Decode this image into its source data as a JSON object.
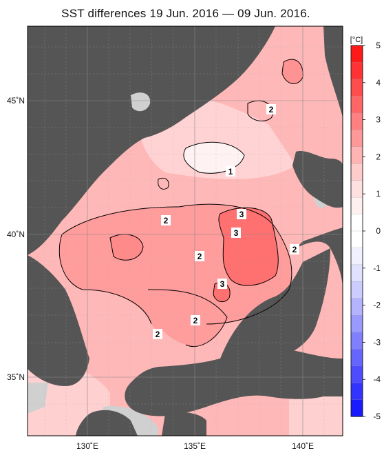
{
  "title": "SST differences 19 Jun. 2016 — 09 Jun. 2016.",
  "map": {
    "lon_labels": [
      "130˚E",
      "135˚E",
      "140˚E"
    ],
    "lat_labels": [
      "45˚N",
      "40˚N",
      "35˚N"
    ],
    "contour_labels": [
      "2",
      "1",
      "3",
      "3",
      "2",
      "2",
      "2",
      "3",
      "2",
      "2"
    ]
  },
  "colorbar": {
    "unit": "[°C]",
    "ticks": [
      "5",
      "4",
      "3",
      "2",
      "1",
      "0",
      "-1",
      "-2",
      "-3",
      "-4",
      "-5"
    ],
    "colors": [
      "#ff1a1a",
      "#ff3333",
      "#ff4d4d",
      "#ff6666",
      "#ff8080",
      "#ff9999",
      "#ffb3b3",
      "#ffcccc",
      "#ffe0e0",
      "#fff0f0",
      "#ffffff",
      "#ffffff",
      "#f0f0ff",
      "#e0e0ff",
      "#ccccff",
      "#b3b3ff",
      "#9999ff",
      "#8080ff",
      "#6666ff",
      "#4d4dff",
      "#3333ff",
      "#1a1aff"
    ]
  },
  "legend_colors": {
    "land": "#555555",
    "no_data": "#d0d0d0",
    "grid": "#888888"
  }
}
